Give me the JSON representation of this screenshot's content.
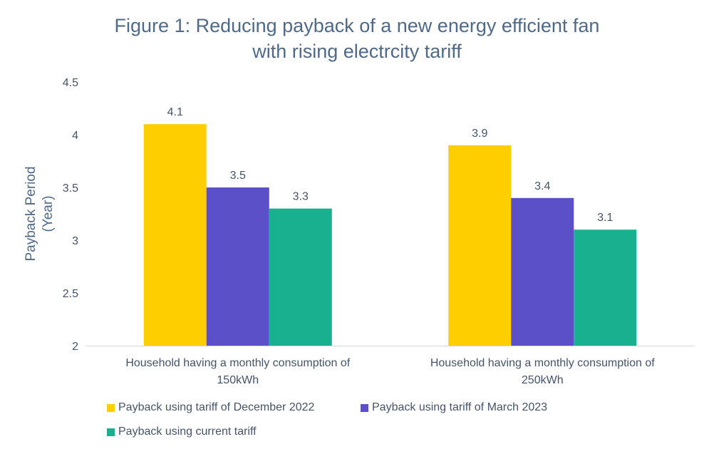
{
  "chart_data": {
    "type": "bar",
    "title": [
      "Figure 1: Reducing payback of a new energy efficient fan",
      "with rising electrcity tariff"
    ],
    "xlabel": "",
    "ylabel": [
      "Payback Period",
      "(Year)"
    ],
    "ylim": [
      2,
      4.5
    ],
    "yticks": [
      "2",
      "2.5",
      "3",
      "3.5",
      "4",
      "4.5"
    ],
    "grid": false,
    "legend_position": "bottom",
    "categories": [
      [
        "Household having a monthly consumption of",
        "150kWh"
      ],
      [
        "Household having a monthly consumption of",
        "250kWh"
      ]
    ],
    "series": [
      {
        "name": "Payback using tariff of December 2022",
        "color": "#FFCE00",
        "values": [
          4.1,
          3.9
        ]
      },
      {
        "name": "Payback using tariff of March 2023",
        "color": "#5B50C8",
        "values": [
          3.5,
          3.4
        ]
      },
      {
        "name": "Payback using current tariff",
        "color": "#18B08E",
        "values": [
          3.3,
          3.1
        ]
      }
    ]
  }
}
